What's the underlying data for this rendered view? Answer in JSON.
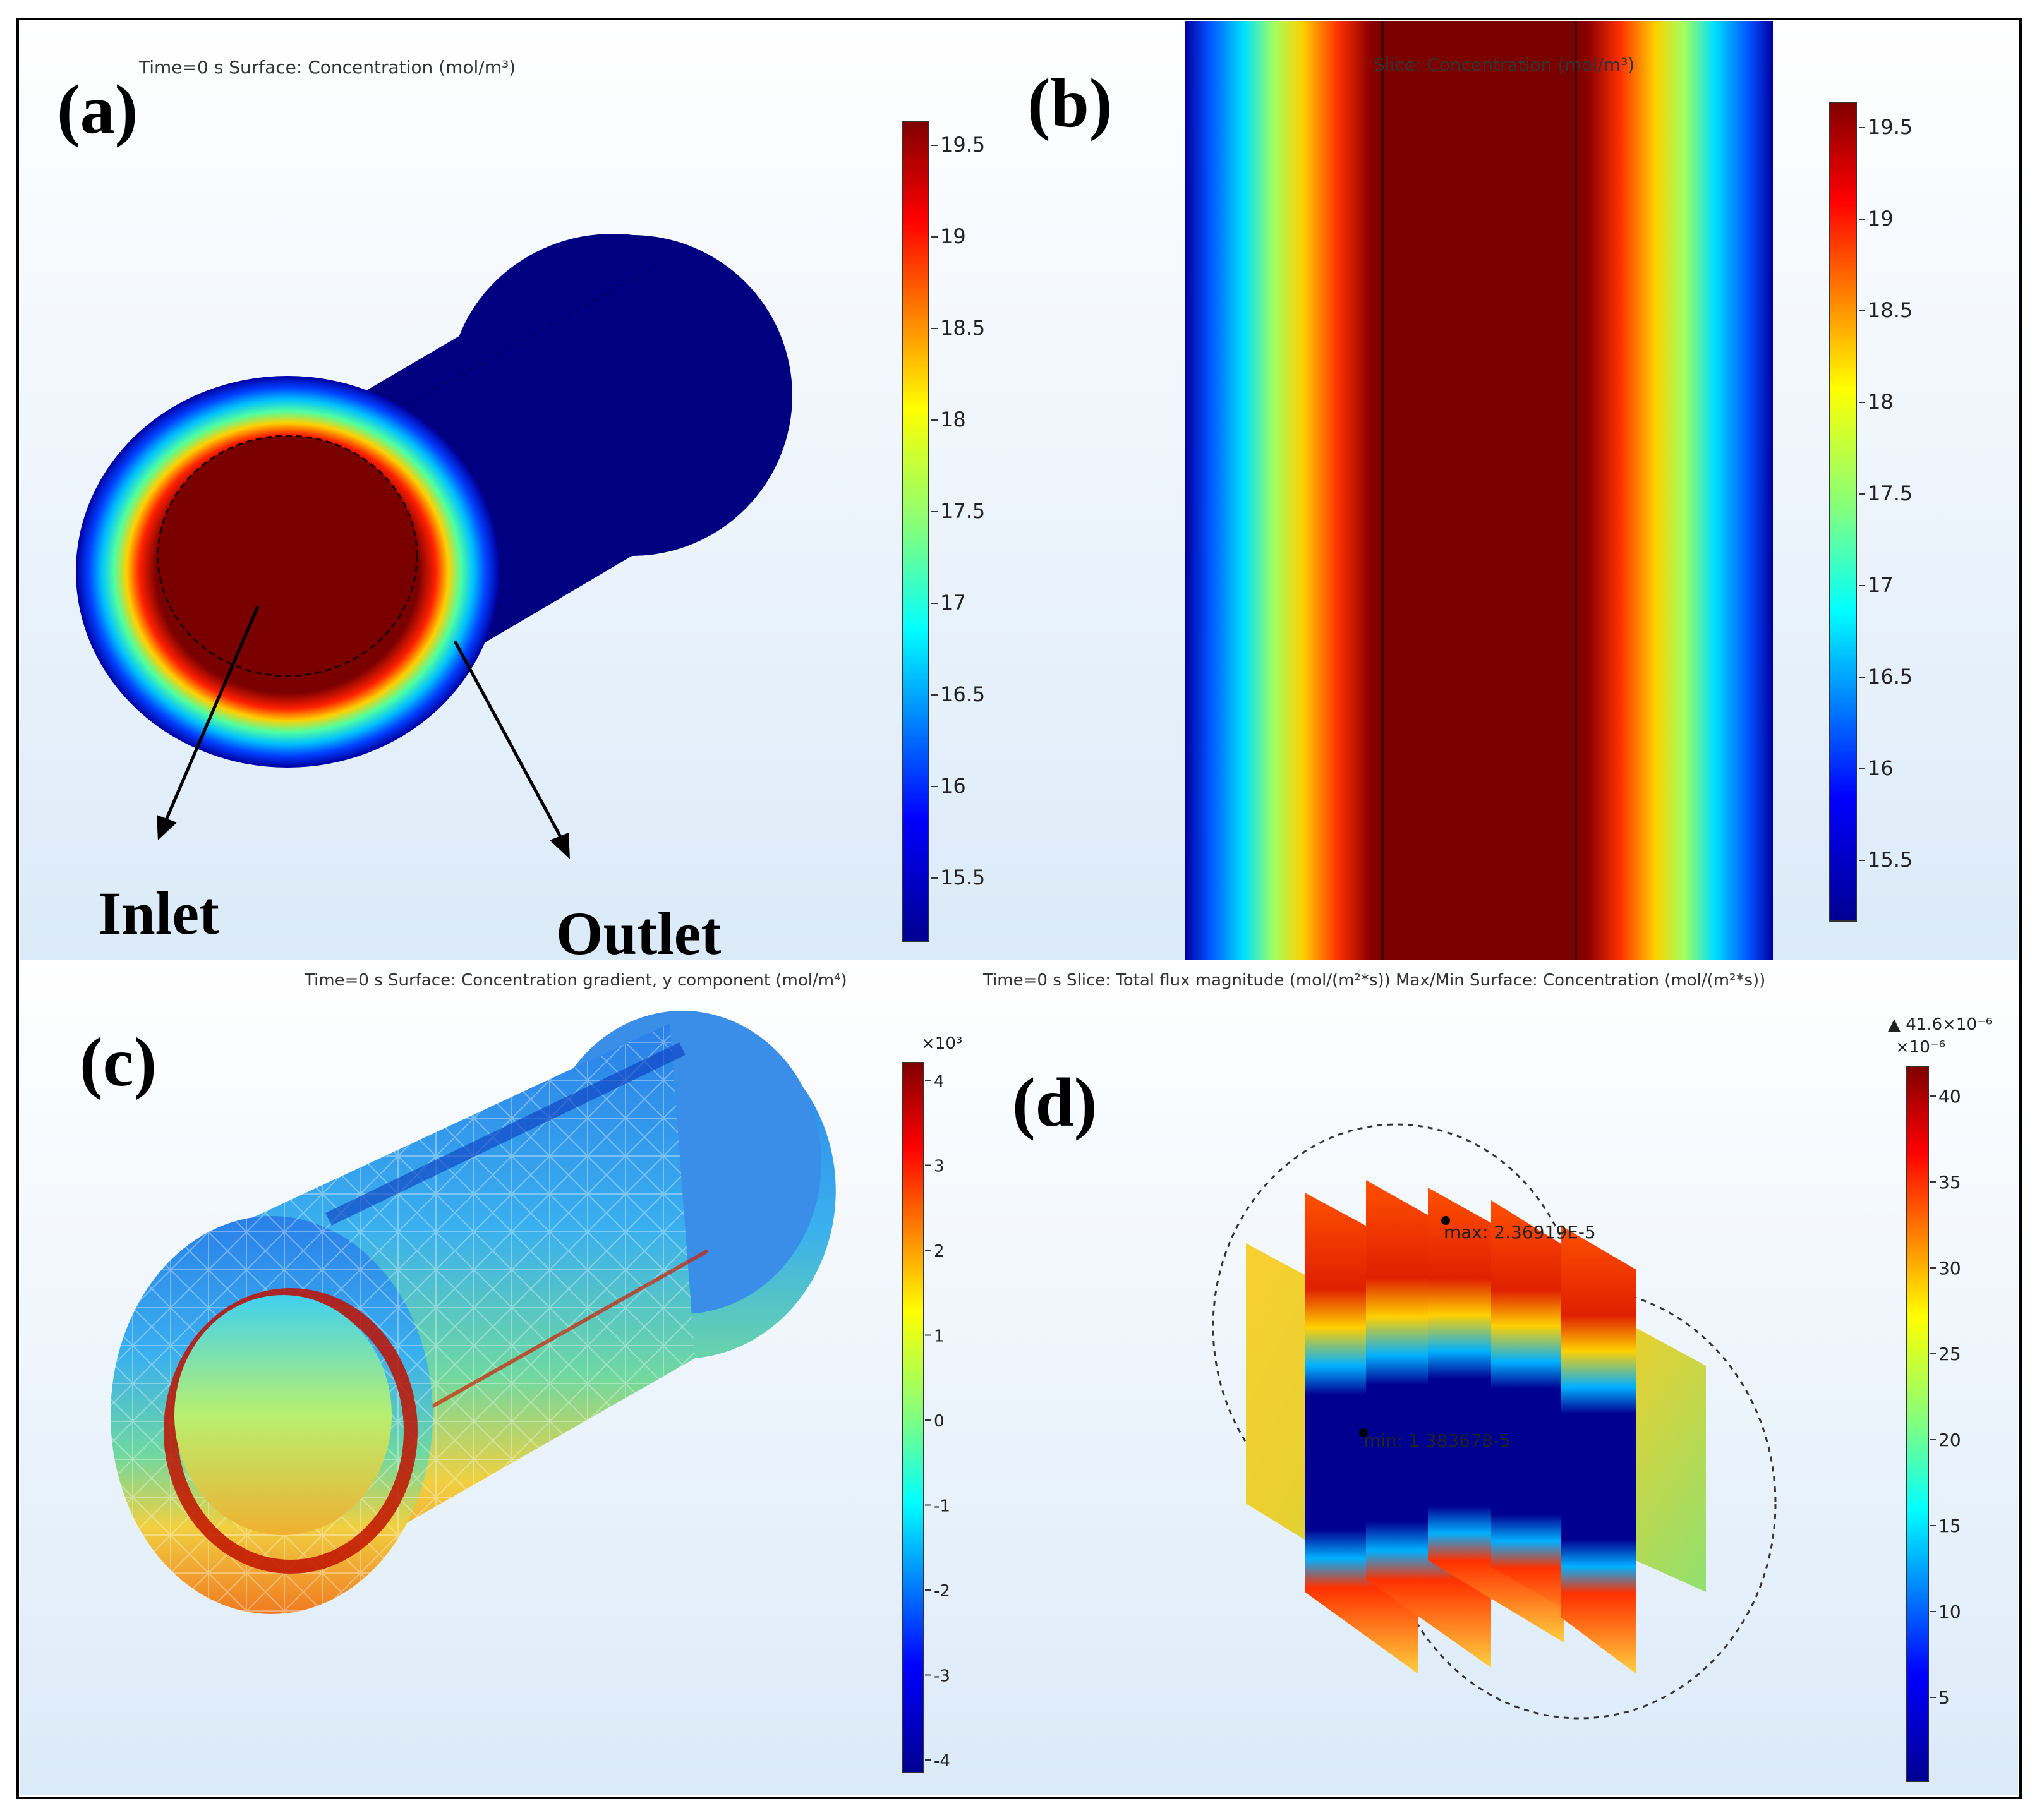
{
  "panels": {
    "a": {
      "label": "(a)",
      "header": "Time=0 s   Surface: Concentration (mol/m³)",
      "inlet_label": "Inlet",
      "outlet_label": "Outlet",
      "colorbar_ticks": [
        "19.5",
        "19",
        "18.5",
        "18",
        "17.5",
        "17",
        "16.5",
        "16",
        "15.5"
      ]
    },
    "b": {
      "label": "(b)",
      "header": "Slice: Concentration (mol/m³)",
      "colorbar_ticks": [
        "19.5",
        "19",
        "18.5",
        "18",
        "17.5",
        "17",
        "16.5",
        "16",
        "15.5"
      ]
    },
    "c": {
      "label": "(c)",
      "header": "Time=0 s   Surface: Concentration gradient, y component (mol/m⁴)",
      "colorbar_exponent": "×10³",
      "colorbar_ticks": [
        "4",
        "3",
        "2",
        "1",
        "0",
        "-1",
        "-2",
        "-3",
        "-4"
      ]
    },
    "d": {
      "label": "(d)",
      "header": "Time=0 s   Slice: Total flux magnitude (mol/(m²*s))  Max/Min Surface: Concentration (mol/(m²*s))",
      "max_indicator": "▲ 41.6×10⁻⁶",
      "colorbar_exponent": "×10⁻⁶",
      "colorbar_ticks": [
        "40",
        "35",
        "30",
        "25",
        "20",
        "15",
        "10",
        "5"
      ],
      "max_annotation": "max: 2.36919E-5",
      "min_annotation": "min: 1.383678-5"
    }
  }
}
